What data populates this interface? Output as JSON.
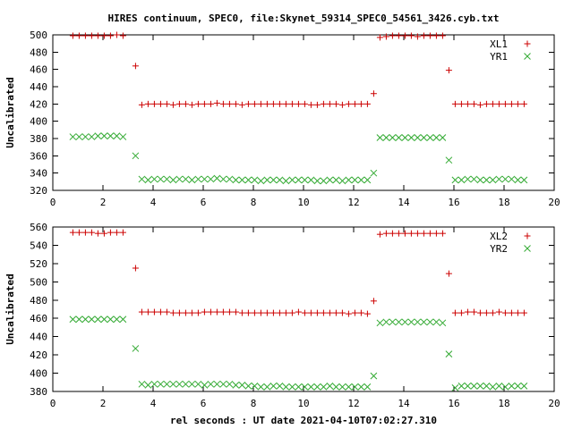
{
  "title": "HIRES continuum, SPEC0, file:Skynet_59314_SPEC0_54561_3426.cyb.txt",
  "xlabel": "rel seconds : UT date 2021-04-10T07:02:27.310",
  "colors": {
    "plus_series": "#cc0000",
    "cross_series": "#33aa33"
  },
  "chart_data": [
    {
      "type": "scatter",
      "ylabel": "Uncalibrated",
      "xlim": [
        0,
        20
      ],
      "ylim": [
        320,
        500
      ],
      "xticks": [
        0,
        2,
        4,
        6,
        8,
        10,
        12,
        14,
        16,
        18,
        20
      ],
      "yticks": [
        320,
        340,
        360,
        380,
        400,
        420,
        440,
        460,
        480,
        500
      ],
      "legend": "top-right",
      "series": [
        {
          "name": "XL1",
          "marker": "plus",
          "x": [
            0.8,
            1.05,
            1.3,
            1.55,
            1.8,
            2.05,
            2.3,
            2.55,
            2.8,
            3.3,
            3.55,
            3.8,
            4.05,
            4.3,
            4.55,
            4.8,
            5.05,
            5.3,
            5.55,
            5.8,
            6.05,
            6.3,
            6.55,
            6.8,
            7.05,
            7.3,
            7.55,
            7.8,
            8.05,
            8.3,
            8.55,
            8.8,
            9.05,
            9.3,
            9.55,
            9.8,
            10.05,
            10.3,
            10.55,
            10.8,
            11.05,
            11.3,
            11.55,
            11.8,
            12.05,
            12.3,
            12.55,
            12.8,
            13.05,
            13.3,
            13.55,
            13.8,
            14.05,
            14.3,
            14.55,
            14.8,
            15.05,
            15.3,
            15.55,
            15.8,
            16.05,
            16.3,
            16.55,
            16.8,
            17.05,
            17.3,
            17.55,
            17.8,
            18.05,
            18.3,
            18.55,
            18.8
          ],
          "y": [
            499,
            499,
            499,
            499,
            499,
            499,
            499,
            500,
            499,
            464,
            419,
            420,
            420,
            420,
            420,
            419,
            420,
            420,
            419,
            420,
            420,
            420,
            421,
            420,
            420,
            420,
            419,
            420,
            420,
            420,
            420,
            420,
            420,
            420,
            420,
            420,
            420,
            419,
            419,
            420,
            420,
            420,
            419,
            420,
            420,
            420,
            420,
            432,
            497,
            498,
            499,
            499,
            499,
            499,
            498,
            499,
            499,
            499,
            499,
            459,
            420,
            420,
            420,
            420,
            419,
            420,
            420,
            420,
            420,
            420,
            420,
            420
          ]
        },
        {
          "name": "YR1",
          "marker": "cross",
          "x": [
            0.8,
            1.05,
            1.3,
            1.55,
            1.8,
            2.05,
            2.3,
            2.55,
            2.8,
            3.3,
            3.55,
            3.8,
            4.05,
            4.3,
            4.55,
            4.8,
            5.05,
            5.3,
            5.55,
            5.8,
            6.05,
            6.3,
            6.55,
            6.8,
            7.05,
            7.3,
            7.55,
            7.8,
            8.05,
            8.3,
            8.55,
            8.8,
            9.05,
            9.3,
            9.55,
            9.8,
            10.05,
            10.3,
            10.55,
            10.8,
            11.05,
            11.3,
            11.55,
            11.8,
            12.05,
            12.3,
            12.55,
            12.8,
            13.05,
            13.3,
            13.55,
            13.8,
            14.05,
            14.3,
            14.55,
            14.8,
            15.05,
            15.3,
            15.55,
            15.8,
            16.05,
            16.3,
            16.55,
            16.8,
            17.05,
            17.3,
            17.55,
            17.8,
            18.05,
            18.3,
            18.55,
            18.8
          ],
          "y": [
            382,
            382,
            382,
            382,
            383,
            383,
            383,
            383,
            382,
            360,
            333,
            332,
            333,
            333,
            333,
            332,
            333,
            333,
            332,
            333,
            333,
            333,
            334,
            333,
            333,
            332,
            332,
            332,
            332,
            331,
            332,
            332,
            332,
            331,
            332,
            332,
            332,
            332,
            331,
            331,
            332,
            332,
            331,
            332,
            332,
            332,
            332,
            340,
            381,
            381,
            381,
            381,
            381,
            381,
            381,
            381,
            381,
            381,
            381,
            355,
            332,
            332,
            333,
            333,
            332,
            332,
            332,
            333,
            333,
            333,
            332,
            332
          ]
        }
      ]
    },
    {
      "type": "scatter",
      "ylabel": "Uncalibrated",
      "xlim": [
        0,
        20
      ],
      "ylim": [
        380,
        560
      ],
      "xticks": [
        0,
        2,
        4,
        6,
        8,
        10,
        12,
        14,
        16,
        18,
        20
      ],
      "yticks": [
        380,
        400,
        420,
        440,
        460,
        480,
        500,
        520,
        540,
        560
      ],
      "legend": "top-right",
      "series": [
        {
          "name": "XL2",
          "marker": "plus",
          "x": [
            0.8,
            1.05,
            1.3,
            1.55,
            1.8,
            2.05,
            2.3,
            2.55,
            2.8,
            3.3,
            3.55,
            3.8,
            4.05,
            4.3,
            4.55,
            4.8,
            5.05,
            5.3,
            5.55,
            5.8,
            6.05,
            6.3,
            6.55,
            6.8,
            7.05,
            7.3,
            7.55,
            7.8,
            8.05,
            8.3,
            8.55,
            8.8,
            9.05,
            9.3,
            9.55,
            9.8,
            10.05,
            10.3,
            10.55,
            10.8,
            11.05,
            11.3,
            11.55,
            11.8,
            12.05,
            12.3,
            12.55,
            12.8,
            13.05,
            13.3,
            13.55,
            13.8,
            14.05,
            14.3,
            14.55,
            14.8,
            15.05,
            15.3,
            15.55,
            15.8,
            16.05,
            16.3,
            16.55,
            16.8,
            17.05,
            17.3,
            17.55,
            17.8,
            18.05,
            18.3,
            18.55,
            18.8
          ],
          "y": [
            554,
            554,
            554,
            554,
            553,
            553,
            554,
            554,
            554,
            515,
            467,
            467,
            467,
            467,
            467,
            466,
            466,
            466,
            466,
            466,
            467,
            467,
            467,
            467,
            467,
            467,
            466,
            466,
            466,
            466,
            466,
            466,
            466,
            466,
            466,
            467,
            466,
            466,
            466,
            466,
            466,
            466,
            466,
            465,
            466,
            466,
            465,
            479,
            552,
            553,
            553,
            553,
            553,
            553,
            553,
            553,
            553,
            553,
            553,
            509,
            466,
            466,
            467,
            467,
            466,
            466,
            466,
            467,
            466,
            466,
            466,
            466
          ]
        },
        {
          "name": "YR2",
          "marker": "cross",
          "x": [
            0.8,
            1.05,
            1.3,
            1.55,
            1.8,
            2.05,
            2.3,
            2.55,
            2.8,
            3.3,
            3.55,
            3.8,
            4.05,
            4.3,
            4.55,
            4.8,
            5.05,
            5.3,
            5.55,
            5.8,
            6.05,
            6.3,
            6.55,
            6.8,
            7.05,
            7.3,
            7.55,
            7.8,
            8.05,
            8.3,
            8.55,
            8.8,
            9.05,
            9.3,
            9.55,
            9.8,
            10.05,
            10.3,
            10.55,
            10.8,
            11.05,
            11.3,
            11.55,
            11.8,
            12.05,
            12.3,
            12.55,
            12.8,
            13.05,
            13.3,
            13.55,
            13.8,
            14.05,
            14.3,
            14.55,
            14.8,
            15.05,
            15.3,
            15.55,
            15.8,
            16.05,
            16.3,
            16.55,
            16.8,
            17.05,
            17.3,
            17.55,
            17.8,
            18.05,
            18.3,
            18.55,
            18.8
          ],
          "y": [
            459,
            459,
            459,
            459,
            459,
            459,
            459,
            459,
            459,
            427,
            388,
            387,
            388,
            388,
            388,
            388,
            388,
            388,
            388,
            388,
            387,
            388,
            388,
            388,
            388,
            387,
            387,
            386,
            386,
            385,
            385,
            386,
            386,
            385,
            385,
            385,
            385,
            385,
            385,
            385,
            386,
            385,
            385,
            385,
            385,
            385,
            385,
            397,
            455,
            456,
            456,
            456,
            456,
            456,
            456,
            456,
            456,
            456,
            455,
            421,
            384,
            386,
            386,
            386,
            386,
            386,
            385,
            386,
            385,
            386,
            386,
            386
          ]
        }
      ]
    }
  ]
}
